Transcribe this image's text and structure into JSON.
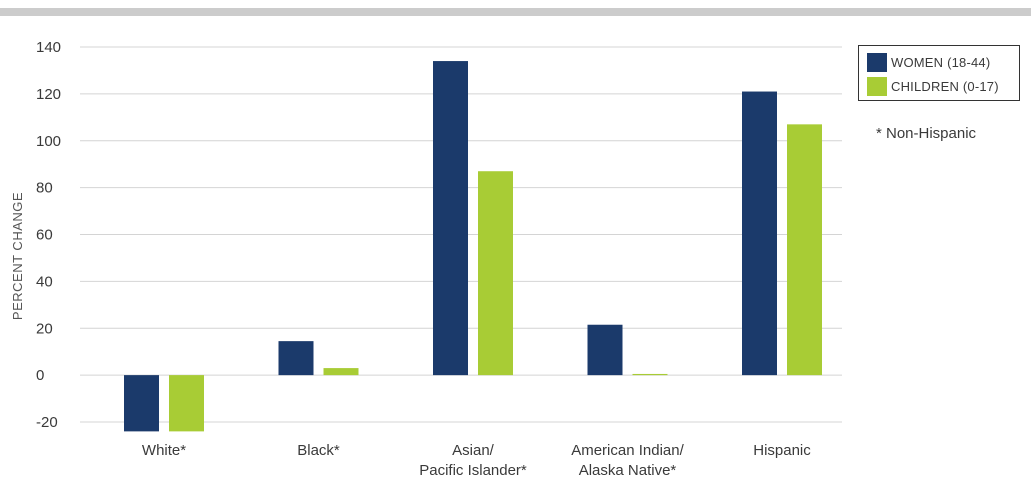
{
  "chart_data": {
    "type": "bar",
    "categories": [
      [
        "White*"
      ],
      [
        "Black*"
      ],
      [
        "Asian/",
        "Pacific Islander*"
      ],
      [
        "American Indian/",
        "Alaska Native*"
      ],
      [
        "Hispanic"
      ]
    ],
    "series": [
      {
        "name": "WOMEN (18-44)",
        "color": "#1b3a6b",
        "values": [
          -24,
          14.5,
          134,
          21.5,
          121
        ]
      },
      {
        "name": "CHILDREN (0-17)",
        "color": "#a8cc35",
        "values": [
          -24,
          3,
          87,
          0.5,
          107
        ]
      }
    ],
    "ylabel": "PERCENT CHANGE",
    "ylim": [
      -20,
      140
    ],
    "yticks": [
      "-20",
      "0",
      "20",
      "40",
      "60",
      "80",
      "100",
      "120",
      "140"
    ],
    "grid": true,
    "legend_position": "top-right",
    "footnote": "* Non-Hispanic"
  }
}
